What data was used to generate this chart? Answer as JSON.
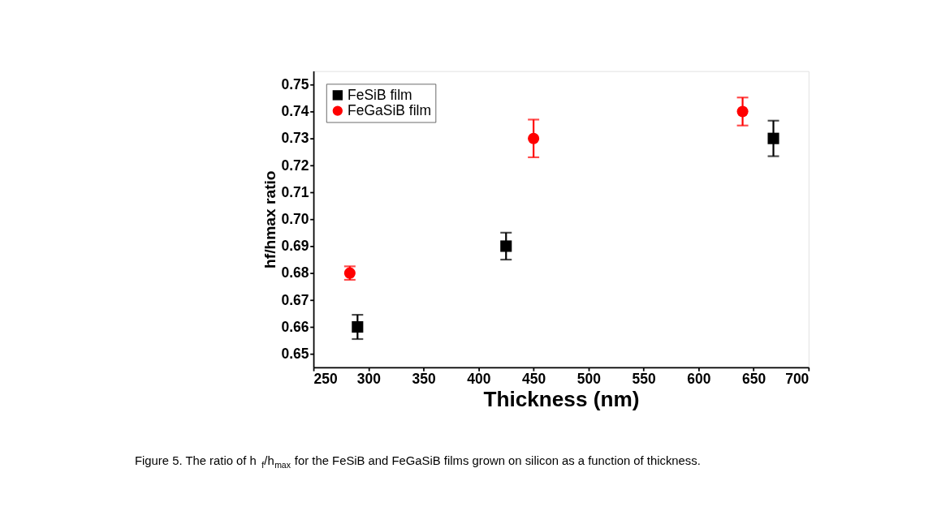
{
  "chart_data": {
    "type": "scatter",
    "xlabel": "Thickness (nm)",
    "ylabel": "hf/hmax ratio",
    "xlim": [
      250,
      700
    ],
    "xticks": [
      250,
      300,
      350,
      400,
      450,
      500,
      550,
      600,
      650,
      700
    ],
    "ylim": [
      0.645,
      0.755
    ],
    "yticks": [
      0.65,
      0.66,
      0.67,
      0.68,
      0.69,
      {
        "value": 0.7,
        "label": "0.70"
      },
      0.71,
      0.72,
      0.73,
      0.74,
      0.75
    ],
    "legend": "top left",
    "grid": false,
    "annotations": [
      "Figure 5. The ratio of h$_{f}$/h$_{max}$ for the FeSiB and FeGaSiB films grown on silicon as a function of thickness."
    ],
    "series": [
      {
        "name": "FeSiB film",
        "color": "#000000",
        "marker": "square",
        "x": [
          290,
          425,
          668
        ],
        "values": [
          0.66,
          0.69,
          0.73
        ],
        "errors": [
          0.0045,
          0.005,
          0.0066
        ]
      },
      {
        "name": "FeGaSiB film",
        "color": "#ff0000",
        "marker": "circle",
        "x": [
          283,
          450,
          640
        ],
        "values": [
          0.68,
          0.73,
          0.74
        ],
        "errors": [
          0.0025,
          0.007,
          0.0052
        ]
      }
    ]
  }
}
